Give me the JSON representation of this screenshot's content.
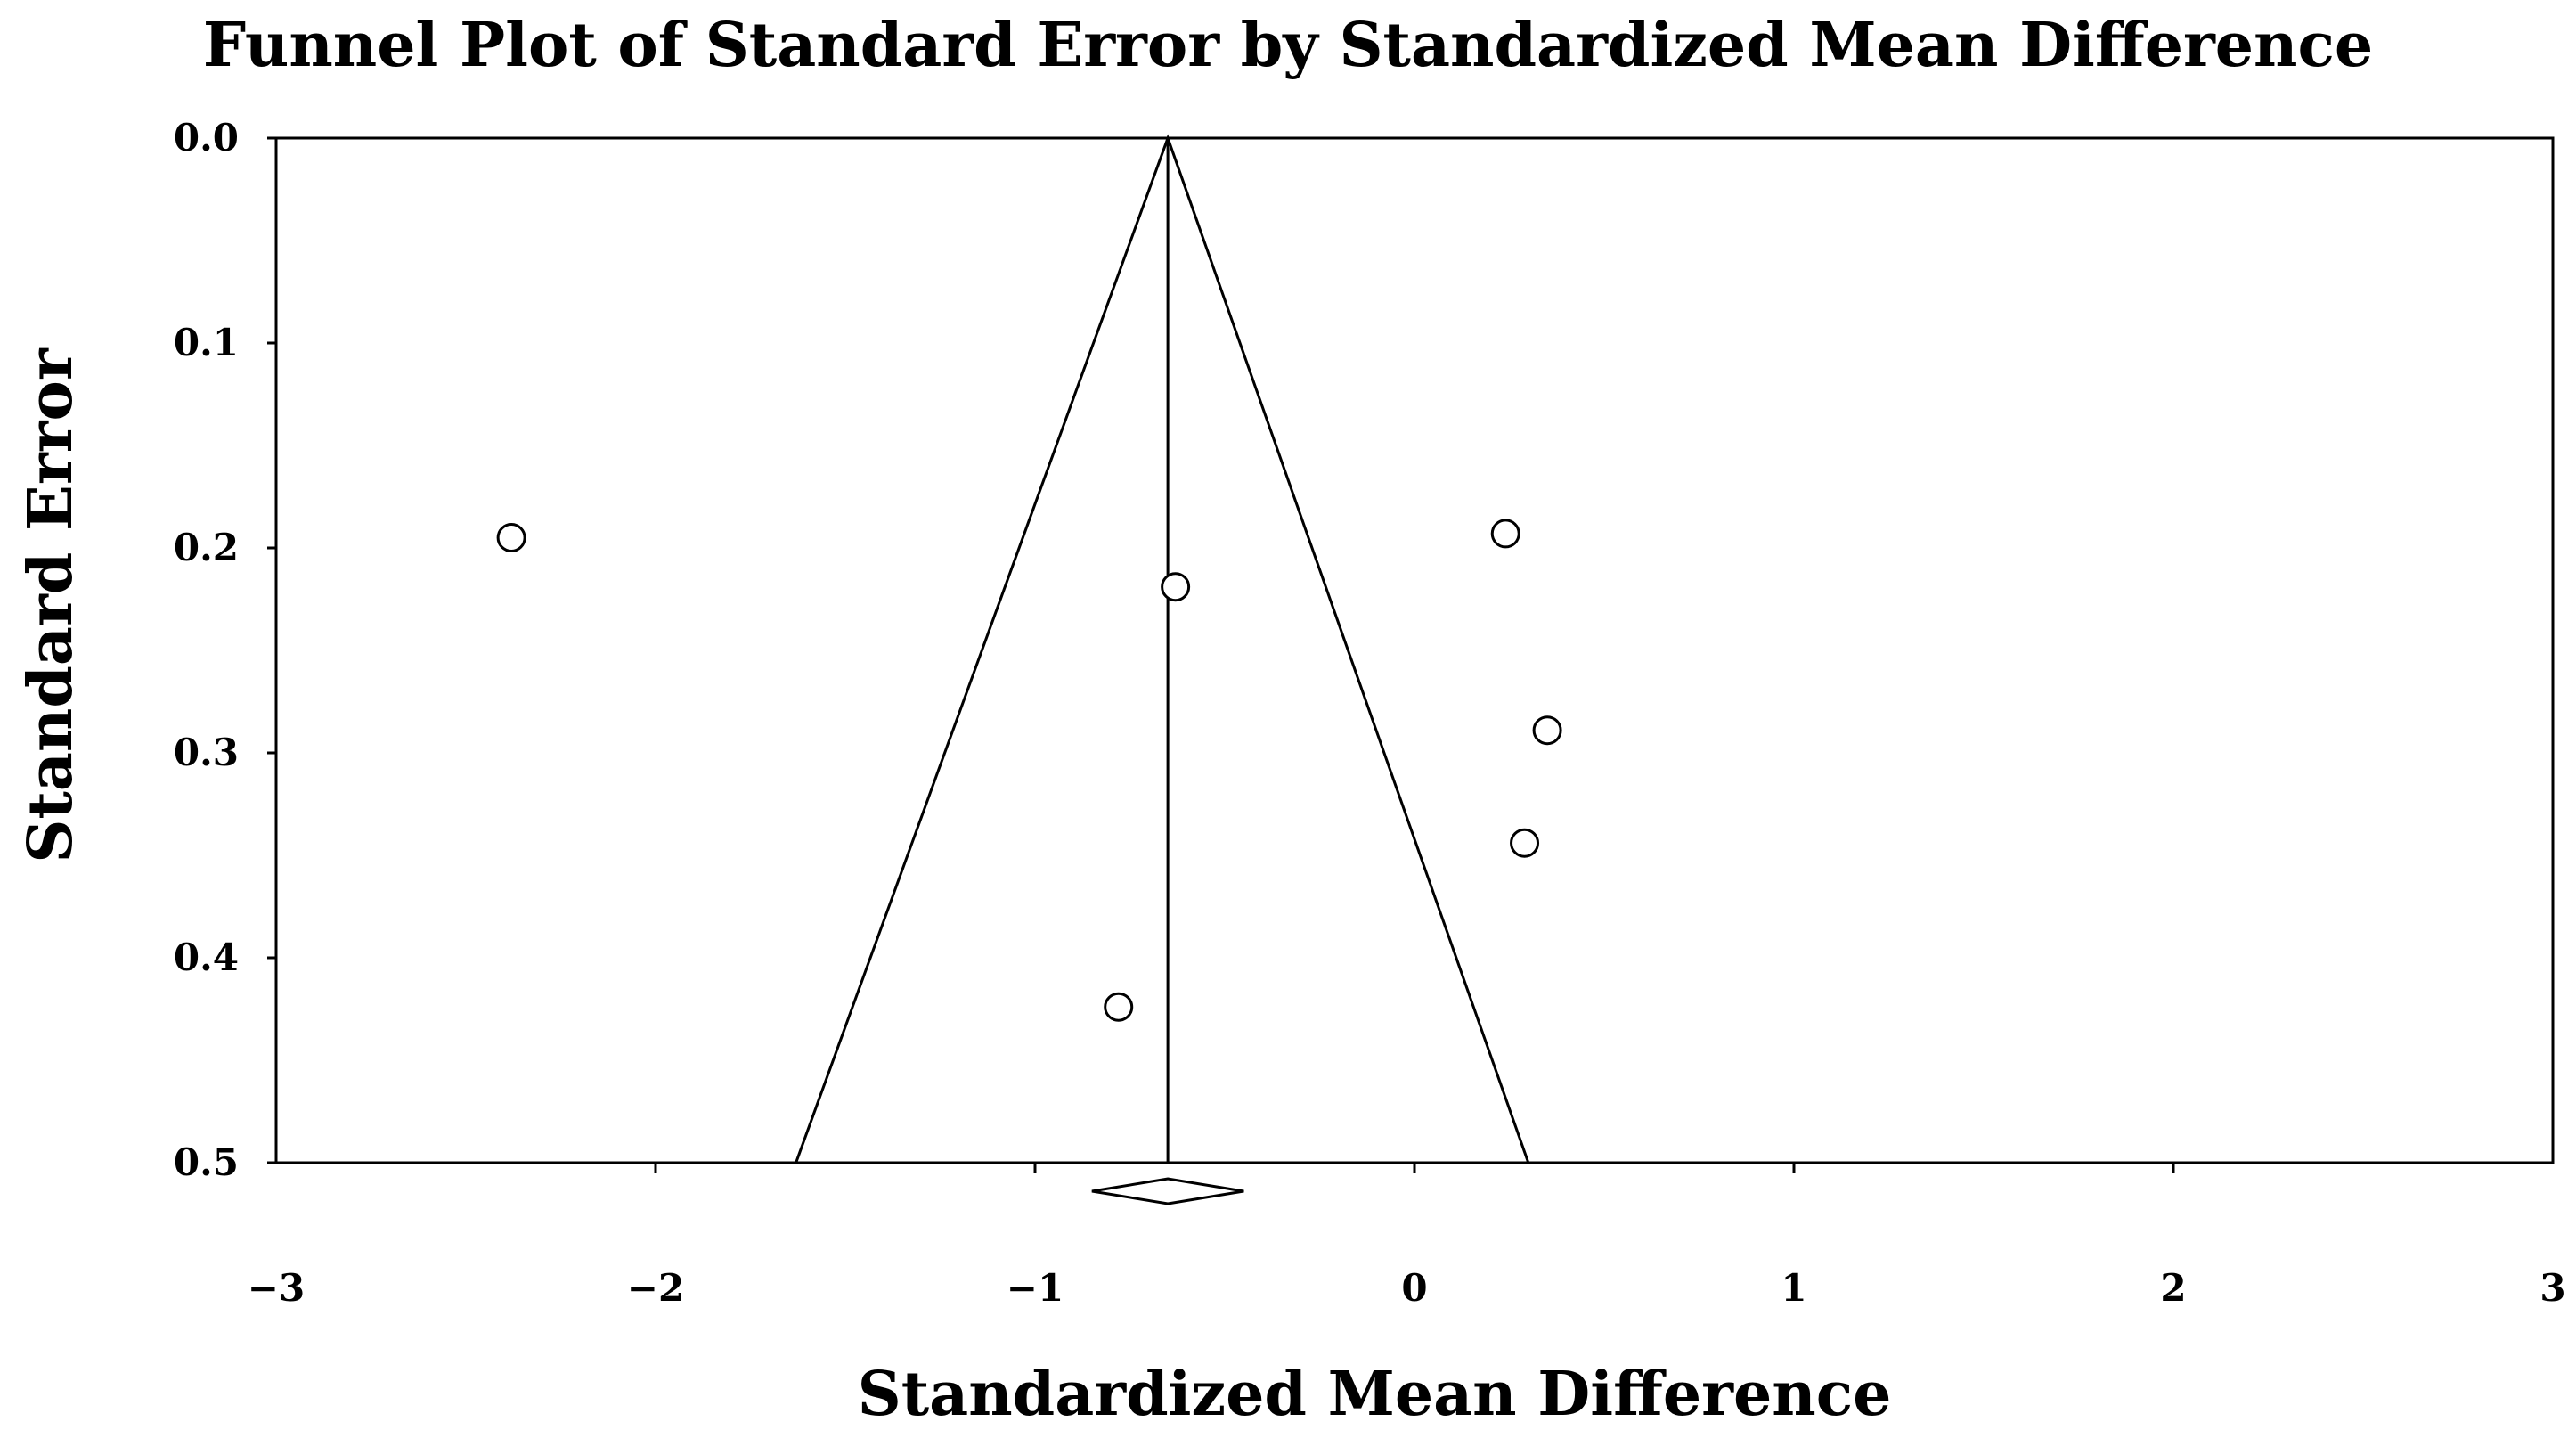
{
  "chart_data": {
    "type": "scatter",
    "title": "Funnel Plot of Standard Error by Standardized Mean Difference",
    "xlabel": "Standardized Mean Difference",
    "ylabel": "Standard Error",
    "xlim": [
      -3,
      3
    ],
    "ylim": [
      0.5,
      0.0
    ],
    "y_axis_inverted": true,
    "grid": false,
    "x_ticks": [
      -3,
      -2,
      -1,
      0,
      1,
      2,
      3
    ],
    "x_tick_labels": [
      "−3",
      "−2",
      "−1",
      "0",
      "1",
      "2",
      "3"
    ],
    "y_ticks": [
      0.0,
      0.1,
      0.2,
      0.3,
      0.4,
      0.5
    ],
    "y_tick_labels": [
      "0.0",
      "0.1",
      "0.2",
      "0.3",
      "0.4",
      "0.5"
    ],
    "studies": {
      "x": [
        -2.38,
        -0.63,
        0.24,
        0.35,
        0.29,
        -0.78
      ],
      "y": [
        0.195,
        0.219,
        0.193,
        0.289,
        0.344,
        0.424
      ]
    },
    "pooled_effect": -0.65,
    "funnel": {
      "apex_se": 0.0,
      "base_se": 0.5,
      "base_left": -1.63,
      "base_right": 0.3
    },
    "summary_diamond": {
      "center": -0.65,
      "lower": -0.85,
      "upper": -0.45
    }
  }
}
